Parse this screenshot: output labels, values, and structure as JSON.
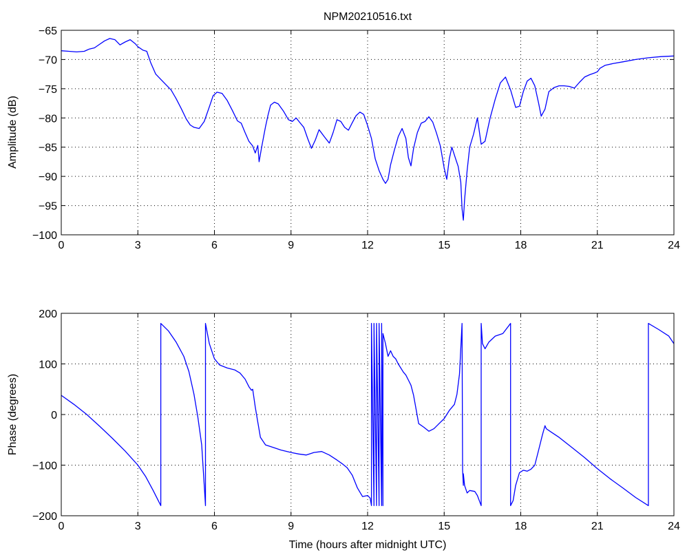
{
  "chart_data": [
    {
      "type": "line",
      "title": "NPM20210516.txt",
      "xlabel": "",
      "ylabel": "Amplitude (dB)",
      "xlim": [
        0,
        24
      ],
      "ylim": [
        -100,
        -65
      ],
      "xticks": [
        "0",
        "3",
        "6",
        "9",
        "12",
        "15",
        "18",
        "21",
        "24"
      ],
      "yticks": [
        "-65",
        "-70",
        "-75",
        "-80",
        "-85",
        "-90",
        "-95",
        "-100"
      ],
      "grid": true,
      "color": "#0000ff",
      "series": [
        {
          "x": [
            0,
            0.3,
            0.6,
            0.9,
            1.1,
            1.3,
            1.5,
            1.7,
            1.9,
            2.1,
            2.3,
            2.5,
            2.7,
            2.9,
            3.0,
            3.2,
            3.35,
            3.5,
            3.7,
            3.9,
            4.1,
            4.3,
            4.5,
            4.7,
            4.9,
            5.05,
            5.2,
            5.4,
            5.6,
            5.8,
            5.95,
            6.1,
            6.3,
            6.5,
            6.7,
            6.9,
            7.05,
            7.2,
            7.35,
            7.5,
            7.6,
            7.7,
            7.75,
            7.85,
            8.0,
            8.1,
            8.2,
            8.35,
            8.5,
            8.7,
            8.9,
            9.05,
            9.2,
            9.35,
            9.5,
            9.65,
            9.8,
            9.95,
            10.1,
            10.3,
            10.5,
            10.65,
            10.8,
            10.95,
            11.1,
            11.25,
            11.4,
            11.55,
            11.7,
            11.85,
            12.0,
            12.15,
            12.3,
            12.45,
            12.6,
            12.7,
            12.8,
            12.9,
            13.05,
            13.2,
            13.35,
            13.5,
            13.6,
            13.7,
            13.8,
            13.95,
            14.1,
            14.25,
            14.4,
            14.55,
            14.7,
            14.85,
            15.0,
            15.1,
            15.2,
            15.3,
            15.45,
            15.55,
            15.65,
            15.7,
            15.75,
            15.8,
            15.9,
            16.0,
            16.15,
            16.3,
            16.45,
            16.6,
            16.8,
            17.0,
            17.2,
            17.4,
            17.6,
            17.8,
            17.95,
            18.1,
            18.25,
            18.4,
            18.55,
            18.7,
            18.8,
            18.95,
            19.1,
            19.3,
            19.5,
            19.7,
            19.9,
            20.1,
            20.3,
            20.5,
            20.7,
            20.9,
            21.0,
            21.1,
            21.3,
            21.6,
            22.0,
            22.5,
            23.0,
            23.5,
            24.0
          ],
          "values": [
            -68.5,
            -68.6,
            -68.7,
            -68.6,
            -68.2,
            -68.0,
            -67.4,
            -66.8,
            -66.4,
            -66.6,
            -67.5,
            -67.0,
            -66.6,
            -67.3,
            -67.8,
            -68.4,
            -68.6,
            -70.5,
            -72.5,
            -73.4,
            -74.3,
            -75.2,
            -76.7,
            -78.4,
            -80.2,
            -81.2,
            -81.6,
            -81.8,
            -80.6,
            -78.1,
            -76.2,
            -75.6,
            -75.8,
            -77.0,
            -78.7,
            -80.5,
            -80.9,
            -82.5,
            -84.0,
            -84.8,
            -86.0,
            -84.7,
            -87.5,
            -85.0,
            -81.5,
            -79.5,
            -77.8,
            -77.3,
            -77.6,
            -78.8,
            -80.3,
            -80.6,
            -80.0,
            -80.8,
            -81.6,
            -83.5,
            -85.2,
            -83.8,
            -82.0,
            -83.2,
            -84.3,
            -82.5,
            -80.3,
            -80.6,
            -81.6,
            -82.1,
            -80.8,
            -79.6,
            -79.0,
            -79.4,
            -81.3,
            -83.5,
            -87.0,
            -89.0,
            -90.5,
            -91.2,
            -90.5,
            -88.0,
            -85.5,
            -83.2,
            -81.8,
            -83.5,
            -86.8,
            -88.2,
            -85.2,
            -82.5,
            -80.9,
            -80.6,
            -79.8,
            -80.7,
            -82.6,
            -84.8,
            -88.6,
            -90.5,
            -87.0,
            -85.0,
            -87.0,
            -88.3,
            -91.0,
            -95.5,
            -97.5,
            -94.0,
            -89.0,
            -85.0,
            -82.8,
            -80.0,
            -84.5,
            -84.0,
            -80.0,
            -76.8,
            -74.0,
            -73.0,
            -75.2,
            -78.2,
            -78.0,
            -75.5,
            -73.7,
            -73.2,
            -74.5,
            -77.5,
            -79.7,
            -78.5,
            -75.5,
            -74.8,
            -74.5,
            -74.5,
            -74.6,
            -74.9,
            -73.9,
            -73.0,
            -72.6,
            -72.3,
            -72.1,
            -71.5,
            -71.0,
            -70.7,
            -70.4,
            -70.0,
            -69.7,
            -69.5,
            -69.4
          ]
        }
      ]
    },
    {
      "type": "line",
      "title": "",
      "xlabel": "Time (hours after midnight UTC)",
      "ylabel": "Phase (degrees)",
      "xlim": [
        0,
        24
      ],
      "ylim": [
        -200,
        200
      ],
      "xticks": [
        "0",
        "3",
        "6",
        "9",
        "12",
        "15",
        "18",
        "21",
        "24"
      ],
      "yticks": [
        "200",
        "100",
        "0",
        "-100",
        "-200"
      ],
      "grid": true,
      "color": "#0000ff",
      "series": [
        {
          "x": [
            0,
            0.5,
            1.0,
            1.5,
            2.0,
            2.5,
            3.0,
            3.3,
            3.6,
            3.9,
            3.9,
            4.2,
            4.5,
            4.8,
            5.0,
            5.2,
            5.35,
            5.5,
            5.6,
            5.65,
            5.65,
            5.8,
            6.0,
            6.2,
            6.5,
            6.8,
            7.0,
            7.2,
            7.35,
            7.45,
            7.5,
            7.6,
            7.7,
            7.8,
            8.0,
            8.3,
            8.6,
            9.0,
            9.3,
            9.6,
            9.9,
            10.2,
            10.5,
            10.8,
            11.0,
            11.2,
            11.4,
            11.6,
            11.8,
            12.0,
            12.1,
            12.15,
            12.15,
            12.25,
            12.25,
            12.35,
            12.35,
            12.45,
            12.45,
            12.55,
            12.55,
            12.6,
            12.6,
            12.7,
            12.8,
            12.9,
            13.0,
            13.1,
            13.2,
            13.3,
            13.4,
            13.5,
            13.6,
            13.7,
            13.8,
            13.9,
            14.0,
            14.2,
            14.4,
            14.6,
            14.8,
            15.0,
            15.2,
            15.4,
            15.5,
            15.6,
            15.7,
            15.72,
            15.75,
            15.75,
            15.8,
            15.9,
            16.0,
            16.2,
            16.3,
            16.45,
            16.45,
            16.5,
            16.6,
            16.75,
            17.0,
            17.3,
            17.6,
            17.6,
            17.7,
            17.8,
            17.95,
            18.1,
            18.25,
            18.4,
            18.55,
            18.7,
            18.85,
            18.95,
            19.0,
            19.2,
            19.5,
            20.0,
            20.5,
            21.0,
            21.5,
            22.0,
            22.5,
            23.0,
            23.0,
            23.4,
            23.8,
            24.0
          ],
          "values": [
            38,
            20,
            0,
            -23,
            -47,
            -72,
            -100,
            -122,
            -150,
            -180,
            180,
            165,
            143,
            115,
            85,
            40,
            -5,
            -60,
            -140,
            -180,
            180,
            140,
            110,
            98,
            92,
            88,
            82,
            70,
            55,
            48,
            50,
            15,
            -15,
            -45,
            -60,
            -65,
            -70,
            -75,
            -78,
            -80,
            -75,
            -73,
            -80,
            -90,
            -97,
            -105,
            -120,
            -145,
            -162,
            -160,
            -165,
            -180,
            180,
            -180,
            180,
            -180,
            180,
            -180,
            180,
            -180,
            180,
            -180,
            160,
            140,
            115,
            126,
            115,
            110,
            100,
            92,
            84,
            78,
            68,
            58,
            38,
            10,
            -18,
            -25,
            -33,
            -28,
            -18,
            -8,
            8,
            20,
            40,
            80,
            180,
            -110,
            -140,
            -117,
            -140,
            -155,
            -150,
            -152,
            -160,
            -180,
            180,
            140,
            130,
            143,
            155,
            160,
            180,
            -180,
            -170,
            -140,
            -115,
            -110,
            -112,
            -108,
            -100,
            -70,
            -40,
            -22,
            -28,
            -35,
            -45,
            -65,
            -85,
            -107,
            -127,
            -145,
            -164,
            -180,
            180,
            168,
            155,
            140
          ]
        }
      ]
    }
  ]
}
